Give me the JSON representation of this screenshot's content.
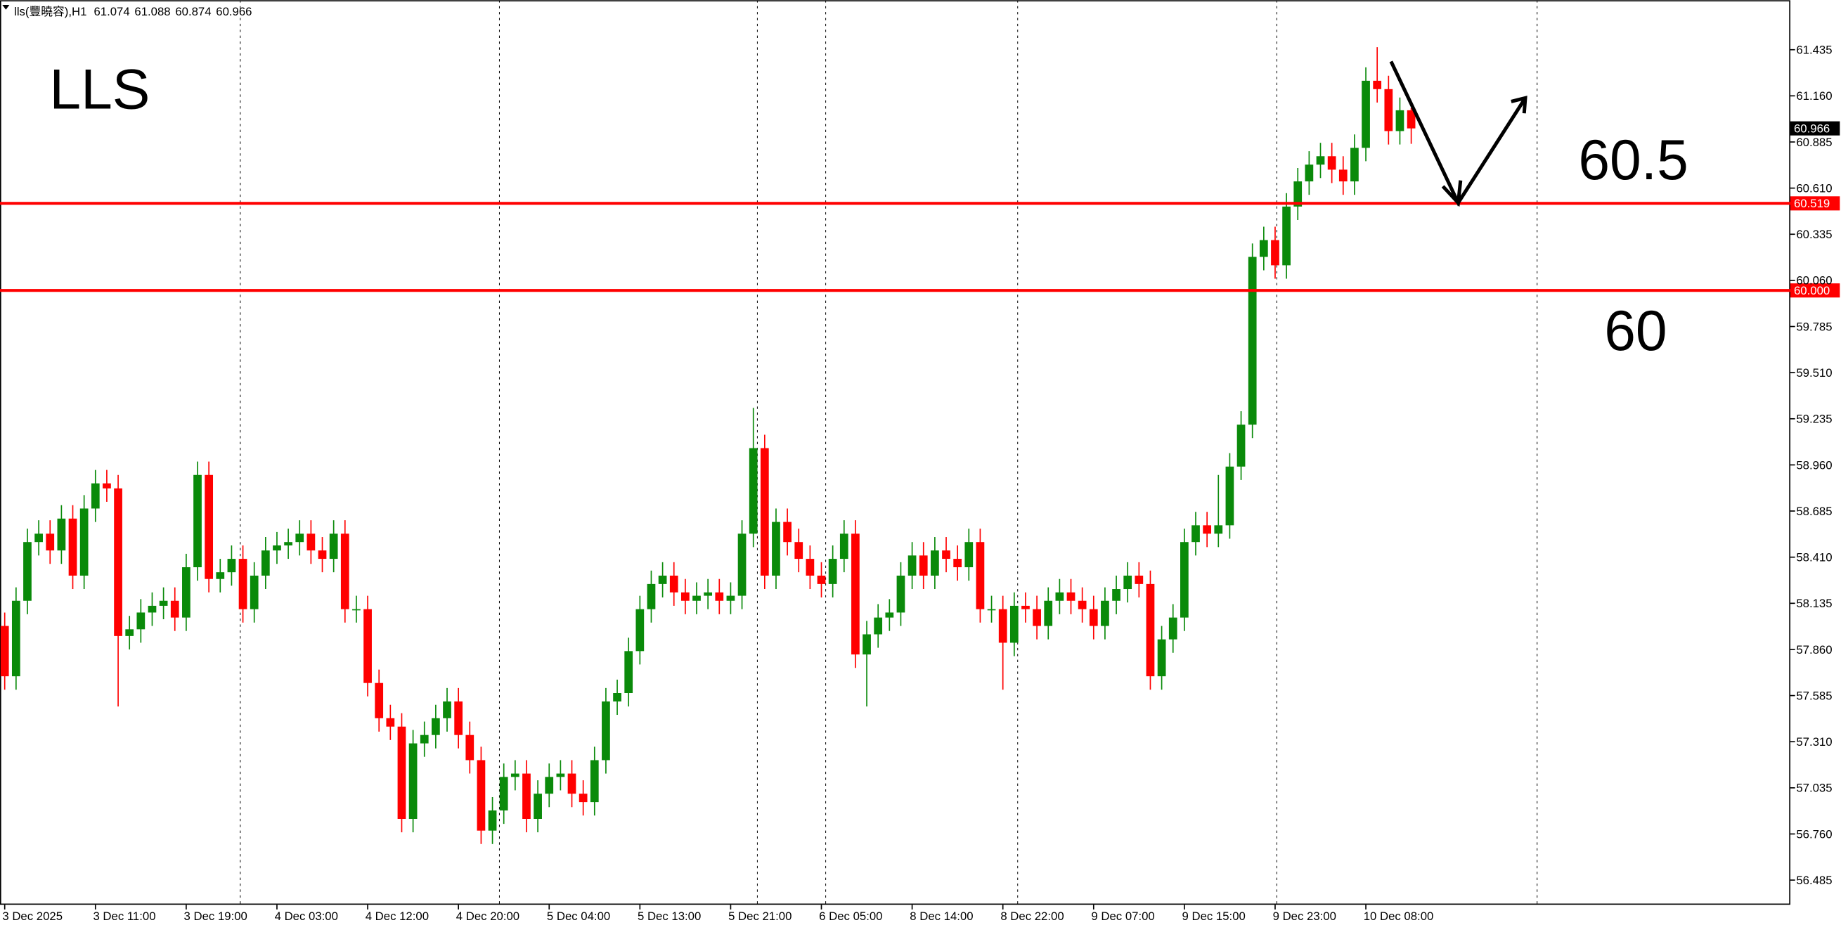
{
  "chart_data": {
    "type": "candlestick",
    "symbol": "lls(豐曉容),H1",
    "annotations": [
      "LLS",
      "60.5",
      "60"
    ],
    "up_color": "#0a8a0a",
    "down_color": "#ff0000",
    "ylim": [
      56.338,
      61.73
    ],
    "yticks": [
      61.435,
      {
        "value": 61.16,
        "label": "61.160"
      },
      60.885,
      {
        "value": 60.61,
        "label": "60.610"
      },
      60.335,
      {
        "value": 60.06,
        "label": "60.060"
      },
      59.785,
      {
        "value": 59.51,
        "label": "59.510"
      },
      59.235,
      {
        "value": 58.96,
        "label": "58.960"
      },
      58.685,
      {
        "value": 58.41,
        "label": "58.410"
      },
      58.135,
      {
        "value": 57.86,
        "label": "57.860"
      },
      57.585,
      {
        "value": 57.31,
        "label": "57.310"
      },
      57.035,
      {
        "value": 56.76,
        "label": "56.760"
      },
      56.485
    ],
    "hlines": [
      60.519,
      {
        "value": 60,
        "label": "60.000"
      }
    ],
    "hline_color": "#ff0000",
    "categories": [
      "3 Dec 2025",
      null,
      null,
      null,
      null,
      null,
      null,
      null,
      "3 Dec 11:00",
      null,
      null,
      null,
      null,
      null,
      null,
      null,
      "3 Dec 19:00",
      null,
      null,
      null,
      null,
      null,
      null,
      null,
      "4 Dec 03:00",
      null,
      null,
      null,
      null,
      null,
      null,
      null,
      "4 Dec 12:00",
      null,
      null,
      null,
      null,
      null,
      null,
      null,
      "4 Dec 20:00",
      null,
      null,
      null,
      null,
      null,
      null,
      null,
      "5 Dec 04:00",
      null,
      null,
      null,
      null,
      null,
      null,
      null,
      "5 Dec 13:00",
      null,
      null,
      null,
      null,
      null,
      null,
      null,
      "5 Dec 21:00",
      null,
      null,
      null,
      null,
      null,
      null,
      null,
      "6 Dec 05:00",
      null,
      null,
      null,
      null,
      null,
      null,
      null,
      "8 Dec 14:00",
      null,
      null,
      null,
      null,
      null,
      null,
      null,
      "8 Dec 22:00",
      null,
      null,
      null,
      null,
      null,
      null,
      null,
      "9 Dec 07:00",
      null,
      null,
      null,
      null,
      null,
      null,
      null,
      "9 Dec 15:00",
      null,
      null,
      null,
      null,
      null,
      null,
      null,
      "9 Dec 23:00",
      null,
      null,
      null,
      null,
      null,
      null,
      null,
      "10 Dec 08:00",
      null,
      null,
      null,
      null
    ],
    "open": [
      58.0,
      57.7,
      58.15,
      58.5,
      58.55,
      58.45,
      58.64,
      58.3,
      58.7,
      58.85,
      58.82,
      57.94,
      57.98,
      58.08,
      58.12,
      58.15,
      58.05,
      58.35,
      58.9,
      58.28,
      58.32,
      58.4,
      58.1,
      58.3,
      58.45,
      58.48,
      58.5,
      58.55,
      58.45,
      58.4,
      58.55,
      58.1,
      58.1,
      57.66,
      57.45,
      57.4,
      56.85,
      57.3,
      57.35,
      57.45,
      57.55,
      57.35,
      57.2,
      56.78,
      56.9,
      57.1,
      57.12,
      56.85,
      57.0,
      57.1,
      57.12,
      57.0,
      56.95,
      57.2,
      57.55,
      57.6,
      57.85,
      58.1,
      58.25,
      58.3,
      58.2,
      58.15,
      58.18,
      58.2,
      58.15,
      58.18,
      58.55,
      59.06,
      58.3,
      58.62,
      58.5,
      58.4,
      58.3,
      58.25,
      58.4,
      58.55,
      57.83,
      57.95,
      58.05,
      58.08,
      58.3,
      58.42,
      58.3,
      58.45,
      58.4,
      58.35,
      58.5,
      58.1,
      58.1,
      57.9,
      58.12,
      58.1,
      58.0,
      58.15,
      58.2,
      58.15,
      58.1,
      58.0,
      58.15,
      58.22,
      58.3,
      58.25,
      57.7,
      57.92,
      58.05,
      58.5,
      58.6,
      58.55,
      58.6,
      58.95,
      59.2,
      60.2,
      60.3,
      60.15,
      60.5,
      60.65,
      60.75,
      60.8,
      60.72,
      60.65,
      60.85,
      61.25,
      61.2,
      60.95,
      61.074
    ],
    "high": [
      58.08,
      58.23,
      58.58,
      58.63,
      58.63,
      58.72,
      58.72,
      58.78,
      58.93,
      58.93,
      58.9,
      58.06,
      58.16,
      58.2,
      58.23,
      58.23,
      58.43,
      58.98,
      58.98,
      58.4,
      58.48,
      58.48,
      58.38,
      58.53,
      58.56,
      58.58,
      58.63,
      58.63,
      58.53,
      58.63,
      58.63,
      58.18,
      58.18,
      57.74,
      57.53,
      57.48,
      57.38,
      57.43,
      57.53,
      57.63,
      57.63,
      57.43,
      57.28,
      56.98,
      57.18,
      57.2,
      57.2,
      57.08,
      57.18,
      57.2,
      57.2,
      57.08,
      57.28,
      57.63,
      57.68,
      57.93,
      58.18,
      58.33,
      58.38,
      58.38,
      58.28,
      58.26,
      58.28,
      58.28,
      58.26,
      58.63,
      59.3,
      59.14,
      58.7,
      58.7,
      58.58,
      58.48,
      58.38,
      58.48,
      58.63,
      58.63,
      58.03,
      58.13,
      58.16,
      58.38,
      58.5,
      58.5,
      58.53,
      58.53,
      58.48,
      58.58,
      58.58,
      58.18,
      58.18,
      58.2,
      58.2,
      58.18,
      58.23,
      58.28,
      58.28,
      58.23,
      58.18,
      58.23,
      58.3,
      58.38,
      58.38,
      58.33,
      58.0,
      58.13,
      58.58,
      58.68,
      58.68,
      58.9,
      59.03,
      59.28,
      60.28,
      60.38,
      60.38,
      60.58,
      60.73,
      60.83,
      60.88,
      60.88,
      60.8,
      60.93,
      61.33,
      61.45,
      61.28,
      61.15,
      61.088
    ],
    "low": [
      57.62,
      57.62,
      58.07,
      58.42,
      58.37,
      58.37,
      58.22,
      58.22,
      58.62,
      58.74,
      57.52,
      57.86,
      57.9,
      58.0,
      58.04,
      57.97,
      57.97,
      58.27,
      58.2,
      58.2,
      58.24,
      58.02,
      58.02,
      58.22,
      58.37,
      58.4,
      58.42,
      58.37,
      58.32,
      58.32,
      58.02,
      58.02,
      57.58,
      57.37,
      57.32,
      56.77,
      56.77,
      57.22,
      57.27,
      57.37,
      57.27,
      57.12,
      56.7,
      56.7,
      56.82,
      57.02,
      56.77,
      56.77,
      56.92,
      57.02,
      56.92,
      56.87,
      56.87,
      57.12,
      57.47,
      57.52,
      57.77,
      58.02,
      58.17,
      58.12,
      58.07,
      58.07,
      58.1,
      58.07,
      58.07,
      58.1,
      58.47,
      58.22,
      58.22,
      58.42,
      58.32,
      58.22,
      58.17,
      58.17,
      58.32,
      57.75,
      57.52,
      57.87,
      57.97,
      58.0,
      58.22,
      58.22,
      58.22,
      58.32,
      58.27,
      58.27,
      58.02,
      58.02,
      57.62,
      57.82,
      58.02,
      57.92,
      57.92,
      58.07,
      58.07,
      58.02,
      57.92,
      57.92,
      58.07,
      58.14,
      58.17,
      57.62,
      57.62,
      57.84,
      57.97,
      58.42,
      58.47,
      58.47,
      58.52,
      58.87,
      59.12,
      60.12,
      60.07,
      60.07,
      60.42,
      60.57,
      60.67,
      60.64,
      60.57,
      60.57,
      60.77,
      61.12,
      60.87,
      60.87,
      60.874
    ],
    "close": [
      57.7,
      58.15,
      58.5,
      58.55,
      58.45,
      58.64,
      58.3,
      58.7,
      58.85,
      58.82,
      57.94,
      57.98,
      58.08,
      58.12,
      58.15,
      58.05,
      58.35,
      58.9,
      58.28,
      58.32,
      58.4,
      58.1,
      58.3,
      58.45,
      58.48,
      58.5,
      58.55,
      58.45,
      58.4,
      58.55,
      58.1,
      58.1,
      57.66,
      57.45,
      57.4,
      56.85,
      57.3,
      57.35,
      57.45,
      57.55,
      57.35,
      57.2,
      56.78,
      56.9,
      57.1,
      57.12,
      56.85,
      57.0,
      57.1,
      57.12,
      57.0,
      56.95,
      57.2,
      57.55,
      57.6,
      57.85,
      58.1,
      58.25,
      58.3,
      58.2,
      58.15,
      58.18,
      58.2,
      58.15,
      58.18,
      58.55,
      59.06,
      58.3,
      58.62,
      58.5,
      58.4,
      58.3,
      58.25,
      58.4,
      58.55,
      57.83,
      57.95,
      58.05,
      58.08,
      58.3,
      58.42,
      58.3,
      58.45,
      58.4,
      58.35,
      58.5,
      58.1,
      58.1,
      57.9,
      58.12,
      58.1,
      58.0,
      58.15,
      58.2,
      58.15,
      58.1,
      58.0,
      58.15,
      58.22,
      58.3,
      58.25,
      57.7,
      57.92,
      58.05,
      58.5,
      58.6,
      58.55,
      58.6,
      58.95,
      59.2,
      60.2,
      60.3,
      60.15,
      60.5,
      60.65,
      60.75,
      60.8,
      60.72,
      60.65,
      60.85,
      61.25,
      61.2,
      60.95,
      61.074,
      60.966
    ]
  }
}
